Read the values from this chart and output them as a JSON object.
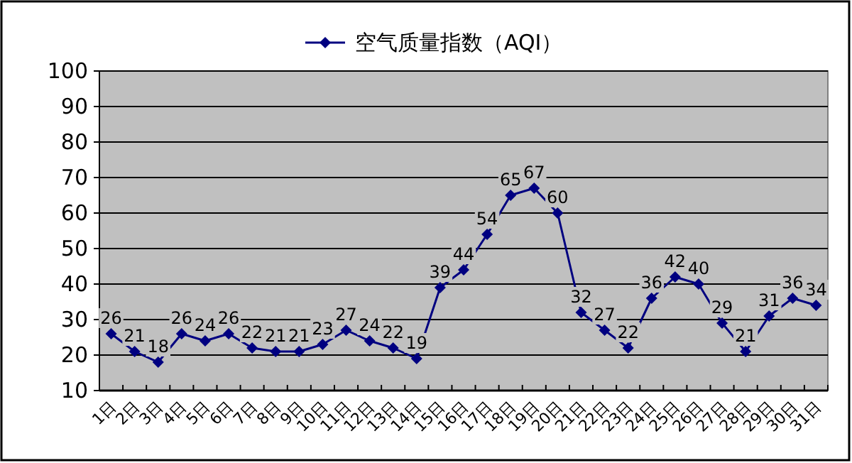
{
  "chart_data": {
    "type": "line",
    "categories": [
      "1日",
      "2日",
      "3日",
      "4日",
      "5日",
      "6日",
      "7日",
      "8日",
      "9日",
      "10日",
      "11日",
      "12日",
      "13日",
      "14日",
      "15日",
      "16日",
      "17日",
      "18日",
      "19日",
      "20日",
      "21日",
      "22日",
      "23日",
      "24日",
      "25日",
      "26日",
      "27日",
      "28日",
      "29日",
      "30日",
      "31日"
    ],
    "series": [
      {
        "name": "空气质量指数（AQI）",
        "color": "#000080",
        "values": [
          26,
          21,
          18,
          26,
          24,
          26,
          22,
          21,
          21,
          23,
          27,
          24,
          22,
          19,
          39,
          44,
          54,
          65,
          67,
          60,
          32,
          27,
          22,
          36,
          42,
          40,
          29,
          21,
          31,
          36,
          34
        ]
      }
    ],
    "ylim": [
      10,
      100
    ],
    "yticks": [
      10,
      20,
      30,
      40,
      50,
      60,
      70,
      80,
      90,
      100
    ],
    "grid": "y",
    "legend": "top",
    "data_labels": true,
    "marker": "diamond",
    "line_style": "solid"
  }
}
